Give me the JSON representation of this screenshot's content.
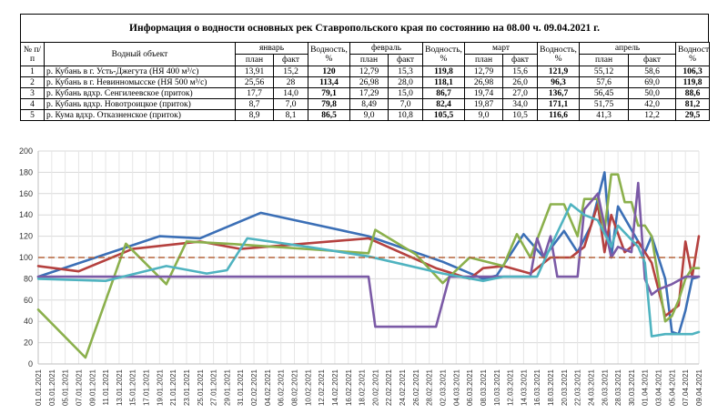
{
  "table": {
    "title": "Информация о водности основных рек Ставропольского края по состоянию на 08.00 ч. 09.04.2021 г.",
    "headers": {
      "num": "№ п/п",
      "object": "Водный объект",
      "months": [
        "январь",
        "февраль",
        "март",
        "апрель"
      ],
      "water": "Водность, %",
      "plan": "план",
      "fact": "факт"
    },
    "rows": [
      {
        "n": "1",
        "name": "р. Кубань в г. Усть-Джегута (НЯ 400 м³/с)",
        "jan_plan": "13,91",
        "jan_fact": "15,2",
        "jan_w": "120",
        "feb_plan": "12,79",
        "feb_fact": "15,3",
        "feb_w": "119,8",
        "mar_plan": "12,79",
        "mar_fact": "15,6",
        "mar_w": "121,9",
        "apr_plan": "55,12",
        "apr_fact": "58,6",
        "apr_w": "106,3"
      },
      {
        "n": "2",
        "name": "р. Кубань в г. Невинномысске (НЯ 500 м³/с)",
        "jan_plan": "25,56",
        "jan_fact": "28",
        "jan_w": "113,4",
        "feb_plan": "26,98",
        "feb_fact": "28,0",
        "feb_w": "118,1",
        "mar_plan": "26,98",
        "mar_fact": "26,0",
        "mar_w": "96,3",
        "apr_plan": "57,6",
        "apr_fact": "69,0",
        "apr_w": "119,8"
      },
      {
        "n": "3",
        "name": "р. Кубань вдхр. Сенгилеевское (приток)",
        "jan_plan": "17,7",
        "jan_fact": "14,0",
        "jan_w": "79,1",
        "feb_plan": "17,29",
        "feb_fact": "15,0",
        "feb_w": "86,7",
        "mar_plan": "19,74",
        "mar_fact": "27,0",
        "mar_w": "136,7",
        "apr_plan": "56,45",
        "apr_fact": "50,0",
        "apr_w": "88,6"
      },
      {
        "n": "4",
        "name": "р. Кубань вдхр. Новотроицкое (приток)",
        "jan_plan": "8,7",
        "jan_fact": "7,0",
        "jan_w": "79,8",
        "feb_plan": "8,49",
        "feb_fact": "7,0",
        "feb_w": "82,4",
        "mar_plan": "19,87",
        "mar_fact": "34,0",
        "mar_w": "171,1",
        "apr_plan": "51,75",
        "apr_fact": "42,0",
        "apr_w": "81,2"
      },
      {
        "n": "5",
        "name": "р. Кума вдхр. Отказненское (приток)",
        "jan_plan": "8,9",
        "jan_fact": "8,1",
        "jan_w": "86,5",
        "feb_plan": "9,0",
        "feb_fact": "10,8",
        "feb_w": "105,5",
        "mar_plan": "9,0",
        "mar_fact": "10,5",
        "mar_w": "116,6",
        "apr_plan": "41,3",
        "apr_fact": "12,2",
        "apr_w": "29,5"
      }
    ]
  },
  "chart_data": {
    "type": "line",
    "ylim": [
      0,
      200
    ],
    "yticks": [
      "0",
      "20",
      "40",
      "60",
      "80",
      "100",
      "120",
      "140",
      "160",
      "180",
      "200"
    ],
    "xtick_labels": [
      "01.01.2021",
      "03.01.2021",
      "05.01.2021",
      "07.01.2021",
      "09.01.2021",
      "11.01.2021",
      "13.01.2021",
      "15.01.2021",
      "17.01.2021",
      "19.01.2021",
      "21.01.2021",
      "23.01.2021",
      "25.01.2021",
      "27.01.2021",
      "29.01.2021",
      "31.01.2021",
      "02.02.2021",
      "04.02.2021",
      "06.02.2021",
      "08.02.2021",
      "10.02.2021",
      "12.02.2021",
      "14.02.2021",
      "16.02.2021",
      "18.02.2021",
      "20.02.2021",
      "22.02.2021",
      "24.02.2021",
      "26.02.2021",
      "28.02.2021",
      "02.03.2021",
      "04.03.2021",
      "06.03.2021",
      "08.03.2021",
      "10.03.2021",
      "12.03.2021",
      "14.03.2021",
      "16.03.2021",
      "18.03.2021",
      "20.03.2021",
      "22.03.2021",
      "24.03.2021",
      "26.03.2021",
      "28.03.2021",
      "30.03.2021",
      "01.04.2021",
      "03.04.2021",
      "05.04.2021",
      "07.04.2021",
      "09.04.2021"
    ],
    "grid": true,
    "reference_line": 100,
    "series": [
      {
        "color": "#3b6fb6",
        "points": [
          [
            0,
            82
          ],
          [
            18,
            120
          ],
          [
            24,
            118
          ],
          [
            33,
            142
          ],
          [
            49,
            120
          ],
          [
            60,
            96
          ],
          [
            66,
            80
          ],
          [
            68,
            83
          ],
          [
            72,
            122
          ],
          [
            75,
            100
          ],
          [
            78,
            125
          ],
          [
            80,
            105
          ],
          [
            82,
            130
          ],
          [
            84,
            180
          ],
          [
            85,
            100
          ],
          [
            86,
            148
          ],
          [
            89,
            115
          ],
          [
            90,
            105
          ],
          [
            91,
            120
          ],
          [
            93,
            80
          ],
          [
            94,
            30
          ],
          [
            95,
            28
          ],
          [
            96,
            50
          ],
          [
            97,
            80
          ],
          [
            98,
            82
          ]
        ]
      },
      {
        "color": "#b5413f",
        "points": [
          [
            0,
            92
          ],
          [
            6,
            87
          ],
          [
            14,
            108
          ],
          [
            24,
            115
          ],
          [
            30,
            108
          ],
          [
            49,
            118
          ],
          [
            59,
            90
          ],
          [
            64,
            80
          ],
          [
            66,
            90
          ],
          [
            69,
            92
          ],
          [
            73,
            85
          ],
          [
            76,
            100
          ],
          [
            79,
            100
          ],
          [
            81,
            110
          ],
          [
            83,
            150
          ],
          [
            84,
            105
          ],
          [
            85,
            140
          ],
          [
            87,
            105
          ],
          [
            89,
            115
          ],
          [
            90,
            105
          ],
          [
            91,
            95
          ],
          [
            93,
            45
          ],
          [
            94,
            50
          ],
          [
            95,
            55
          ],
          [
            96,
            115
          ],
          [
            97,
            82
          ],
          [
            98,
            120
          ]
        ]
      },
      {
        "color": "#8bb04c",
        "points": [
          [
            0,
            51
          ],
          [
            7,
            6
          ],
          [
            13,
            113
          ],
          [
            19,
            75
          ],
          [
            22,
            115
          ],
          [
            28,
            113
          ],
          [
            49,
            104
          ],
          [
            50,
            126
          ],
          [
            56,
            103
          ],
          [
            60,
            76
          ],
          [
            64,
            100
          ],
          [
            69,
            92
          ],
          [
            71,
            122
          ],
          [
            73,
            100
          ],
          [
            76,
            150
          ],
          [
            78,
            150
          ],
          [
            80,
            120
          ],
          [
            81,
            155
          ],
          [
            83,
            155
          ],
          [
            84,
            125
          ],
          [
            85,
            178
          ],
          [
            86,
            178
          ],
          [
            87,
            152
          ],
          [
            88,
            152
          ],
          [
            89,
            130
          ],
          [
            90,
            130
          ],
          [
            91,
            120
          ],
          [
            93,
            40
          ],
          [
            94,
            45
          ],
          [
            95,
            60
          ],
          [
            96,
            80
          ],
          [
            97,
            90
          ],
          [
            98,
            90
          ]
        ]
      },
      {
        "color": "#7b5aa6",
        "points": [
          [
            0,
            82
          ],
          [
            49,
            82
          ],
          [
            50,
            35
          ],
          [
            59,
            35
          ],
          [
            61,
            82
          ],
          [
            73,
            82
          ],
          [
            74,
            118
          ],
          [
            75,
            100
          ],
          [
            76,
            120
          ],
          [
            77,
            82
          ],
          [
            80,
            82
          ],
          [
            81,
            145
          ],
          [
            83,
            160
          ],
          [
            85,
            100
          ],
          [
            86,
            110
          ],
          [
            88,
            105
          ],
          [
            89,
            170
          ],
          [
            90,
            80
          ],
          [
            91,
            65
          ],
          [
            92,
            70
          ],
          [
            94,
            75
          ],
          [
            96,
            82
          ],
          [
            98,
            82
          ]
        ]
      },
      {
        "color": "#4fb3c0",
        "points": [
          [
            0,
            80
          ],
          [
            10,
            78
          ],
          [
            19,
            92
          ],
          [
            25,
            85
          ],
          [
            28,
            88
          ],
          [
            31,
            118
          ],
          [
            40,
            110
          ],
          [
            49,
            101
          ],
          [
            60,
            85
          ],
          [
            66,
            78
          ],
          [
            69,
            82
          ],
          [
            74,
            82
          ],
          [
            76,
            110
          ],
          [
            79,
            150
          ],
          [
            81,
            140
          ],
          [
            83,
            135
          ],
          [
            85,
            110
          ],
          [
            86,
            130
          ],
          [
            89,
            110
          ],
          [
            90,
            95
          ],
          [
            91,
            26
          ],
          [
            93,
            28
          ],
          [
            95,
            28
          ],
          [
            97,
            28
          ],
          [
            98,
            30
          ]
        ]
      }
    ]
  }
}
